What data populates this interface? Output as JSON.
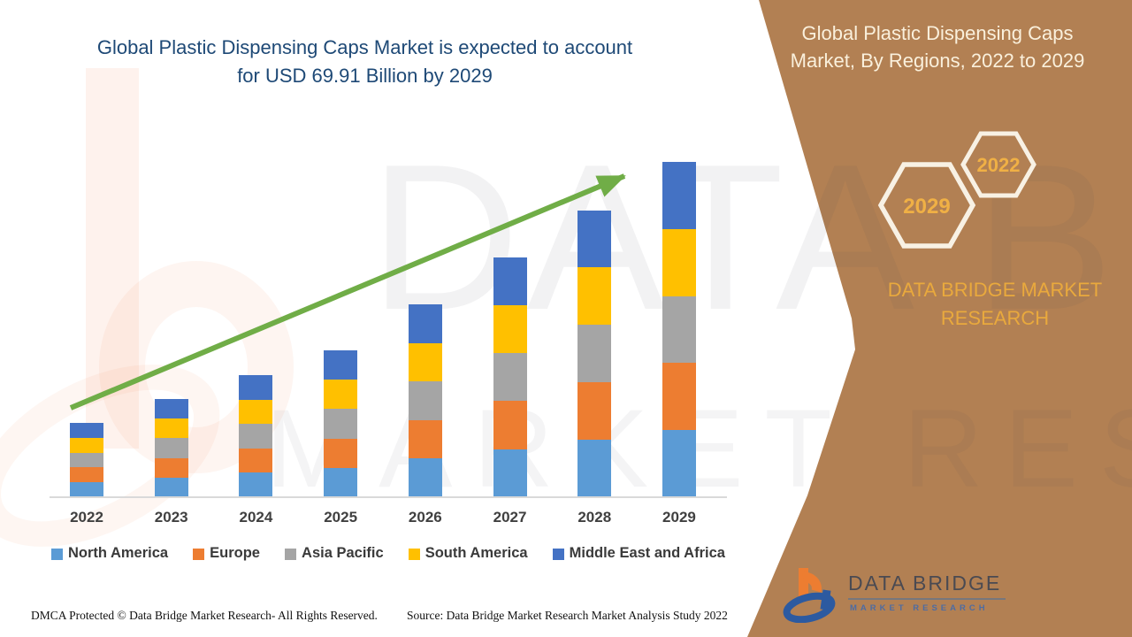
{
  "header": {
    "title_line1": "Global Plastic Dispensing Caps Market is expected to account",
    "title_line2": "for USD 69.91 Billion by 2029"
  },
  "sidebar": {
    "title_line1": "Global Plastic Dispensing Caps",
    "title_line2": "Market, By Regions, 2022 to 2029",
    "hexagons": {
      "back": {
        "label": "2029"
      },
      "front": {
        "label": "2022"
      }
    },
    "brand_line1": "DATA BRIDGE MARKET",
    "brand_line2": "RESEARCH",
    "logo_title": "DATA BRIDGE",
    "logo_subtitle": "MARKET RESEARCH",
    "background_color": "#B28053",
    "gold_color": "#E9A93D"
  },
  "watermark": {
    "line1": "DATA BRIDGE",
    "line2": "MARKET RESEARCH"
  },
  "footer": {
    "left": "DMCA Protected © Data Bridge Market Research- All Rights Reserved.",
    "right": "Source: Data Bridge Market Research Market Analysis Study 2022"
  },
  "chart_data": {
    "type": "bar",
    "stacked": true,
    "unit": "USD Billion",
    "title": "Global Plastic Dispensing Caps Market, By Regions, 2022 to 2029",
    "highlight": "USD 69.91 Billion by 2029",
    "categories": [
      "2022",
      "2023",
      "2024",
      "2025",
      "2026",
      "2027",
      "2028",
      "2029"
    ],
    "series": [
      {
        "name": "North America",
        "color": "#5B9BD5",
        "values": [
          3.1,
          4.1,
          5.1,
          6.12,
          8.04,
          10.02,
          11.98,
          13.98
        ]
      },
      {
        "name": "Europe",
        "color": "#ED7D31",
        "values": [
          3.1,
          4.1,
          5.1,
          6.12,
          8.04,
          10.02,
          11.98,
          13.98
        ]
      },
      {
        "name": "Asia Pacific",
        "color": "#A5A5A5",
        "values": [
          3.1,
          4.1,
          5.1,
          6.12,
          8.04,
          10.02,
          11.98,
          13.98
        ]
      },
      {
        "name": "South America",
        "color": "#FFC000",
        "values": [
          3.1,
          4.1,
          5.1,
          6.12,
          8.04,
          10.02,
          11.98,
          13.98
        ]
      },
      {
        "name": "Middle East and Africa",
        "color": "#4472C4",
        "values": [
          3.1,
          4.1,
          5.1,
          6.12,
          8.04,
          10.02,
          11.98,
          13.98
        ]
      }
    ],
    "totals": [
      15.5,
      20.5,
      25.5,
      30.6,
      40.2,
      50.1,
      59.9,
      69.91
    ],
    "xlabel": "",
    "ylabel": "",
    "ylim": [
      0,
      70
    ],
    "grid": false,
    "legend_position": "bottom",
    "trend_arrow": true,
    "trend_arrow_color": "#70AD47"
  }
}
